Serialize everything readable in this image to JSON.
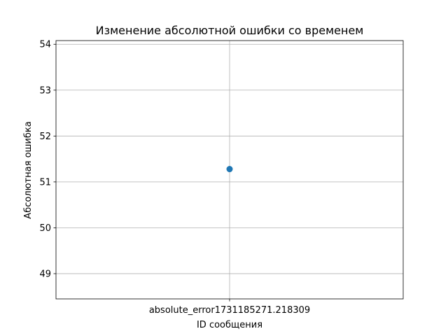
{
  "chart_data": {
    "type": "scatter",
    "title": "Изменение абсолютной ошибки со временем",
    "xlabel": "ID сообщения",
    "ylabel": "Абсолютная ошибка",
    "categories": [
      "absolute_error1731185271.218309"
    ],
    "series": [
      {
        "values": [
          51.28
        ],
        "color": "#1f77b4"
      }
    ],
    "ylim": [
      48.45,
      54.08
    ],
    "yticks": [
      49,
      50,
      51,
      52,
      53,
      54
    ],
    "grid": true,
    "legend": "none"
  }
}
